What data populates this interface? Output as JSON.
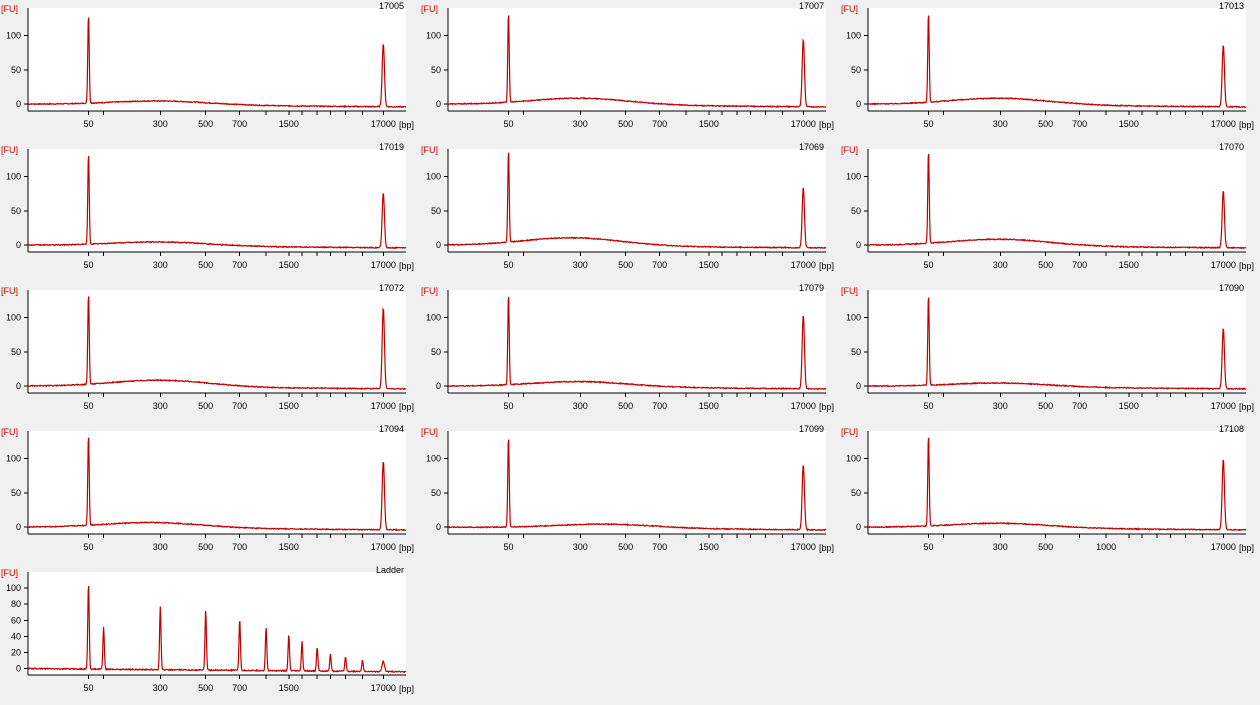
{
  "colors": {
    "trace": "#c00000",
    "y_unit": "#cc0000",
    "background": "#f0f0f0",
    "plot_background": "#ffffff"
  },
  "chart_data": [
    {
      "type": "line",
      "title": "17005",
      "ylabel": "[FU]",
      "xlabel": "[bp]",
      "yticks": [
        0,
        50,
        100
      ],
      "ylim": [
        -10,
        140
      ],
      "xtick_labels": [
        "50",
        "300",
        "500",
        "700",
        "1500",
        "17000"
      ],
      "series": [
        {
          "peaks": [
            {
              "bp": 50,
              "fu": 130
            },
            {
              "bp": 17000,
              "fu": 92
            }
          ],
          "smear_peak_bp": 300,
          "smear_fu": 6
        }
      ]
    },
    {
      "type": "line",
      "title": "17007",
      "ylabel": "[FU]",
      "xlabel": "[bp]",
      "yticks": [
        0,
        50,
        100
      ],
      "ylim": [
        -10,
        140
      ],
      "xtick_labels": [
        "50",
        "300",
        "500",
        "700",
        "1500",
        "17000"
      ],
      "series": [
        {
          "peaks": [
            {
              "bp": 50,
              "fu": 132
            },
            {
              "bp": 17000,
              "fu": 98
            }
          ],
          "smear_peak_bp": 300,
          "smear_fu": 10
        }
      ]
    },
    {
      "type": "line",
      "title": "17013",
      "ylabel": "[FU]",
      "xlabel": "[bp]",
      "yticks": [
        0,
        50,
        100
      ],
      "ylim": [
        -10,
        140
      ],
      "xtick_labels": [
        "50",
        "300",
        "500",
        "700",
        "1500",
        "17000"
      ],
      "series": [
        {
          "peaks": [
            {
              "bp": 50,
              "fu": 132
            },
            {
              "bp": 17000,
              "fu": 90
            }
          ],
          "smear_peak_bp": 300,
          "smear_fu": 10
        }
      ]
    },
    {
      "type": "line",
      "title": "17019",
      "ylabel": "[FU]",
      "xlabel": "[bp]",
      "yticks": [
        0,
        50,
        100
      ],
      "ylim": [
        -10,
        140
      ],
      "xtick_labels": [
        "50",
        "300",
        "500",
        "700",
        "1500",
        "17000"
      ],
      "series": [
        {
          "peaks": [
            {
              "bp": 50,
              "fu": 133
            },
            {
              "bp": 17000,
              "fu": 80
            }
          ],
          "smear_peak_bp": 300,
          "smear_fu": 6
        }
      ]
    },
    {
      "type": "line",
      "title": "17069",
      "ylabel": "[FU]",
      "xlabel": "[bp]",
      "yticks": [
        0,
        50,
        100
      ],
      "ylim": [
        -10,
        140
      ],
      "xtick_labels": [
        "50",
        "300",
        "500",
        "700",
        "1500",
        "17000"
      ],
      "series": [
        {
          "peaks": [
            {
              "bp": 50,
              "fu": 135
            },
            {
              "bp": 17000,
              "fu": 88
            }
          ],
          "smear_peak_bp": 250,
          "smear_fu": 12
        }
      ]
    },
    {
      "type": "line",
      "title": "17070",
      "ylabel": "[FU]",
      "xlabel": "[bp]",
      "yticks": [
        0,
        50,
        100
      ],
      "ylim": [
        -10,
        140
      ],
      "xtick_labels": [
        "50",
        "300",
        "500",
        "700",
        "1500",
        "17000"
      ],
      "series": [
        {
          "peaks": [
            {
              "bp": 50,
              "fu": 135
            },
            {
              "bp": 17000,
              "fu": 83
            }
          ],
          "smear_peak_bp": 300,
          "smear_fu": 10
        }
      ]
    },
    {
      "type": "line",
      "title": "17072",
      "ylabel": "[FU]",
      "xlabel": "[bp]",
      "yticks": [
        0,
        50,
        100
      ],
      "ylim": [
        -10,
        140
      ],
      "xtick_labels": [
        "50",
        "300",
        "500",
        "700",
        "1500",
        "17000"
      ],
      "series": [
        {
          "peaks": [
            {
              "bp": 50,
              "fu": 133
            },
            {
              "bp": 17000,
              "fu": 118
            }
          ],
          "smear_peak_bp": 300,
          "smear_fu": 10
        }
      ]
    },
    {
      "type": "line",
      "title": "17079",
      "ylabel": "[FU]",
      "xlabel": "[bp]",
      "yticks": [
        0,
        50,
        100
      ],
      "ylim": [
        -10,
        140
      ],
      "xtick_labels": [
        "50",
        "300",
        "500",
        "700",
        "1500",
        "17000"
      ],
      "series": [
        {
          "peaks": [
            {
              "bp": 50,
              "fu": 133
            },
            {
              "bp": 17000,
              "fu": 108
            }
          ],
          "smear_peak_bp": 300,
          "smear_fu": 8
        }
      ]
    },
    {
      "type": "line",
      "title": "17090",
      "ylabel": "[FU]",
      "xlabel": "[bp]",
      "yticks": [
        0,
        50,
        100
      ],
      "ylim": [
        -10,
        140
      ],
      "xtick_labels": [
        "50",
        "300",
        "500",
        "700",
        "1500",
        "17000"
      ],
      "series": [
        {
          "peaks": [
            {
              "bp": 50,
              "fu": 133
            },
            {
              "bp": 17000,
              "fu": 88
            }
          ],
          "smear_peak_bp": 300,
          "smear_fu": 6
        }
      ]
    },
    {
      "type": "line",
      "title": "17094",
      "ylabel": "[FU]",
      "xlabel": "[bp]",
      "yticks": [
        0,
        50,
        100
      ],
      "ylim": [
        -10,
        140
      ],
      "xtick_labels": [
        "50",
        "300",
        "500",
        "700",
        "1500",
        "17000"
      ],
      "series": [
        {
          "peaks": [
            {
              "bp": 50,
              "fu": 133
            },
            {
              "bp": 17000,
              "fu": 100
            }
          ],
          "smear_peak_bp": 250,
          "smear_fu": 8
        }
      ]
    },
    {
      "type": "line",
      "title": "17099",
      "ylabel": "[FU]",
      "xlabel": "[bp]",
      "yticks": [
        0,
        50,
        100
      ],
      "ylim": [
        -10,
        140
      ],
      "xtick_labels": [
        "50",
        "300",
        "500",
        "700",
        "1500",
        "17000"
      ],
      "series": [
        {
          "peaks": [
            {
              "bp": 50,
              "fu": 133
            },
            {
              "bp": 17000,
              "fu": 95
            }
          ],
          "smear_peak_bp": 400,
          "smear_fu": 6
        }
      ]
    },
    {
      "type": "line",
      "title": "17108",
      "ylabel": "[FU]",
      "xlabel": "[bp]",
      "yticks": [
        0,
        50,
        100
      ],
      "ylim": [
        -10,
        140
      ],
      "xtick_labels": [
        "50",
        "300",
        "500",
        "1000",
        "17000"
      ],
      "series": [
        {
          "peaks": [
            {
              "bp": 50,
              "fu": 133
            },
            {
              "bp": 17000,
              "fu": 103
            }
          ],
          "smear_peak_bp": 300,
          "smear_fu": 7
        }
      ]
    },
    {
      "type": "line",
      "title": "Ladder",
      "ylabel": "[FU]",
      "xlabel": "[bp]",
      "yticks": [
        0,
        20,
        40,
        60,
        80,
        100
      ],
      "ylim": [
        -8,
        120
      ],
      "xtick_labels": [
        "50",
        "300",
        "500",
        "700",
        "1500",
        "17000"
      ],
      "series": [
        {
          "peaks": [
            {
              "bp": 50,
              "fu": 107
            },
            {
              "bp": 70,
              "fu": 52
            },
            {
              "bp": 300,
              "fu": 78
            },
            {
              "bp": 500,
              "fu": 75
            },
            {
              "bp": 700,
              "fu": 64
            },
            {
              "bp": 1000,
              "fu": 54
            },
            {
              "bp": 1500,
              "fu": 45
            },
            {
              "bp": 2000,
              "fu": 37
            },
            {
              "bp": 3000,
              "fu": 29
            },
            {
              "bp": 4000,
              "fu": 21
            },
            {
              "bp": 6000,
              "fu": 18
            },
            {
              "bp": 10000,
              "fu": 14
            },
            {
              "bp": 17000,
              "fu": 13
            }
          ],
          "smear_peak_bp": 300,
          "smear_fu": 0
        }
      ]
    }
  ]
}
